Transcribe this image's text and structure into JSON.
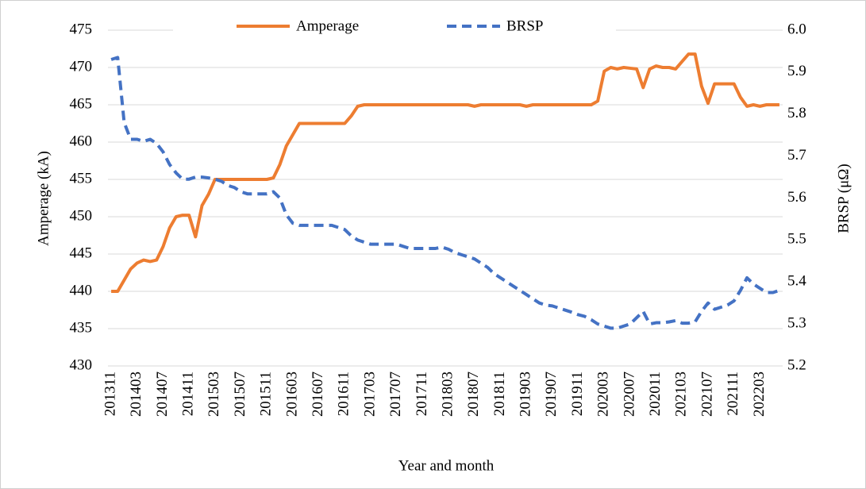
{
  "chart_data": {
    "type": "line",
    "x_label": "Year and month",
    "y_label": "Amperage (kA)",
    "y2_label": "BRSP (μΩ)",
    "categories": [
      "201311",
      null,
      null,
      null,
      "201403",
      null,
      null,
      null,
      "201407",
      null,
      null,
      null,
      "201411",
      null,
      null,
      null,
      "201503",
      null,
      null,
      null,
      "201507",
      null,
      null,
      null,
      "201511",
      null,
      null,
      null,
      "201603",
      null,
      null,
      null,
      "201607",
      null,
      null,
      null,
      "201611",
      null,
      null,
      null,
      "201703",
      null,
      null,
      null,
      "201707",
      null,
      null,
      null,
      "201711",
      null,
      null,
      null,
      "201803",
      null,
      null,
      null,
      "201807",
      null,
      null,
      null,
      "201811",
      null,
      null,
      null,
      "201903",
      null,
      null,
      null,
      "201907",
      null,
      null,
      null,
      "201911",
      null,
      null,
      null,
      "202003",
      null,
      null,
      null,
      "202007",
      null,
      null,
      null,
      "202011",
      null,
      null,
      null,
      "202103",
      null,
      null,
      null,
      "202107",
      null,
      null,
      null,
      "202111",
      null,
      null,
      null,
      "202203",
      null,
      null,
      null
    ],
    "series": [
      {
        "name": "Amperage",
        "color": "#ed7d31",
        "line_style": "solid",
        "axis": "y",
        "values": [
          440,
          440,
          441.5,
          443,
          443.8,
          444.2,
          444,
          444.2,
          446,
          448.5,
          450,
          450.2,
          450.2,
          447.3,
          451.5,
          453,
          455,
          455,
          455,
          455,
          455,
          455,
          455,
          455,
          455,
          455.2,
          457,
          459.5,
          461,
          462.5,
          462.5,
          462.5,
          462.5,
          462.5,
          462.5,
          462.5,
          462.5,
          463.5,
          464.8,
          465,
          465,
          465,
          465,
          465,
          465,
          465,
          465,
          465,
          465,
          465,
          465,
          465,
          465,
          465,
          465,
          465,
          464.8,
          465,
          465,
          465,
          465,
          465,
          465,
          465,
          464.8,
          465,
          465,
          465,
          465,
          465,
          465,
          465,
          465,
          465,
          465,
          465.5,
          469.5,
          470,
          469.8,
          470,
          469.9,
          469.8,
          467.3,
          469.8,
          470.2,
          470,
          470,
          469.8,
          470.8,
          471.8,
          471.8,
          467.5,
          465.2,
          467.8,
          467.8,
          467.8,
          467.8,
          466,
          464.8,
          465,
          464.8,
          465,
          465,
          465
        ]
      },
      {
        "name": "BRSP",
        "color": "#4472c4",
        "line_style": "dashed",
        "axis": "y2",
        "values": [
          5.93,
          5.935,
          5.78,
          5.74,
          5.74,
          5.735,
          5.74,
          5.73,
          5.71,
          5.68,
          5.66,
          5.645,
          5.645,
          5.65,
          5.65,
          5.648,
          5.645,
          5.64,
          5.63,
          5.625,
          5.615,
          5.61,
          5.61,
          5.61,
          5.61,
          5.615,
          5.6,
          5.56,
          5.54,
          5.535,
          5.535,
          5.535,
          5.535,
          5.535,
          5.535,
          5.53,
          5.525,
          5.51,
          5.5,
          5.495,
          5.49,
          5.49,
          5.49,
          5.49,
          5.49,
          5.485,
          5.48,
          5.48,
          5.48,
          5.48,
          5.48,
          5.483,
          5.478,
          5.47,
          5.465,
          5.46,
          5.455,
          5.445,
          5.435,
          5.42,
          5.41,
          5.4,
          5.39,
          5.38,
          5.37,
          5.36,
          5.35,
          5.345,
          5.343,
          5.338,
          5.333,
          5.328,
          5.322,
          5.318,
          5.31,
          5.3,
          5.295,
          5.29,
          5.29,
          5.295,
          5.3,
          5.315,
          5.33,
          5.3,
          5.303,
          5.303,
          5.305,
          5.308,
          5.302,
          5.302,
          5.305,
          5.33,
          5.35,
          5.335,
          5.34,
          5.345,
          5.355,
          5.38,
          5.41,
          5.395,
          5.385,
          5.375,
          5.375,
          5.38
        ]
      }
    ],
    "ylim": [
      430,
      475
    ],
    "yticks": [
      430,
      435,
      440,
      445,
      450,
      455,
      460,
      465,
      470,
      475
    ],
    "y2lim": [
      5.2,
      6.0
    ],
    "y2ticks": [
      5.2,
      5.3,
      5.4,
      5.5,
      5.6,
      5.7,
      5.8,
      5.9,
      {
        "value": 6.0,
        "label": "6.0"
      }
    ],
    "grid": true,
    "legend": "top"
  }
}
